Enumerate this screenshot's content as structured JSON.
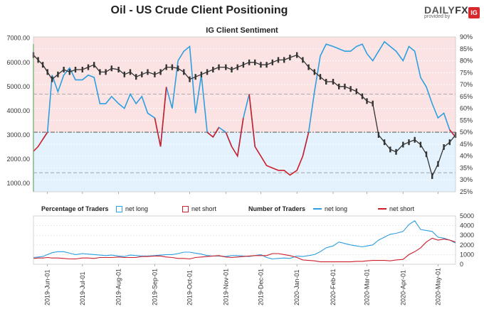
{
  "title": "Oil - US Crude Client Positioning",
  "logo": {
    "brand_a": "DAILY",
    "brand_b": "FX",
    "sub": "provided by",
    "badge": "IG"
  },
  "subtitle": "IG Client Sentiment",
  "legend": {
    "pct_title": "Percentage of Traders",
    "pct_long": "net long",
    "pct_short": "net short",
    "num_title": "Number of Traders",
    "num_long": "net long",
    "num_short": "net short"
  },
  "colors": {
    "net_long": "#2d9fe0",
    "net_short": "#cc1f2b",
    "price": "#333333",
    "bg_long": "#e3f2fc",
    "bg_short": "#fbe3e3"
  },
  "chart_data": [
    {
      "type": "line",
      "title": "IG Client Sentiment",
      "x_labels": [
        "2019-Jun-01",
        "2019-Jul-01",
        "2019-Aug-01",
        "2019-Sep-01",
        "2019-Oct-01",
        "2019-Nov-01",
        "2019-Dec-01",
        "2020-Jan-01",
        "2020-Feb-01",
        "2020-Mar-01",
        "2020-Apr-01",
        "2020-May-01"
      ],
      "left_axis": {
        "ylim": [
          650,
          7050
        ],
        "ticks": [
          "1000.00",
          "2000.00",
          "3000.00",
          "4000.00",
          "5000.00",
          "6000.00",
          "7000.00"
        ]
      },
      "right_axis": {
        "ylim": [
          25,
          90
        ],
        "ticks": [
          "25%",
          "30%",
          "35%",
          "40%",
          "45%",
          "50%",
          "55%",
          "60%",
          "65%",
          "70%",
          "75%",
          "80%",
          "85%",
          "90%"
        ]
      },
      "reference_lines": [
        50,
        66,
        33
      ],
      "x": [
        "2019-05-20",
        "2019-05-24",
        "2019-05-28",
        "2019-06-01",
        "2019-06-05",
        "2019-06-10",
        "2019-06-15",
        "2019-06-20",
        "2019-06-25",
        "2019-07-01",
        "2019-07-06",
        "2019-07-11",
        "2019-07-16",
        "2019-07-21",
        "2019-07-26",
        "2019-08-01",
        "2019-08-06",
        "2019-08-11",
        "2019-08-16",
        "2019-08-21",
        "2019-08-26",
        "2019-09-01",
        "2019-09-06",
        "2019-09-11",
        "2019-09-16",
        "2019-09-21",
        "2019-09-26",
        "2019-10-01",
        "2019-10-06",
        "2019-10-11",
        "2019-10-16",
        "2019-10-21",
        "2019-10-26",
        "2019-11-01",
        "2019-11-06",
        "2019-11-11",
        "2019-11-16",
        "2019-11-21",
        "2019-11-26",
        "2019-12-01",
        "2019-12-06",
        "2019-12-11",
        "2019-12-16",
        "2019-12-21",
        "2019-12-26",
        "2020-01-01",
        "2020-01-06",
        "2020-01-11",
        "2020-01-16",
        "2020-01-21",
        "2020-01-26",
        "2020-02-01",
        "2020-02-06",
        "2020-02-11",
        "2020-02-16",
        "2020-02-21",
        "2020-02-26",
        "2020-03-01",
        "2020-03-06",
        "2020-03-11",
        "2020-03-16",
        "2020-03-21",
        "2020-03-26",
        "2020-04-01",
        "2020-04-06",
        "2020-04-11",
        "2020-04-16",
        "2020-04-21",
        "2020-04-26",
        "2020-05-01",
        "2020-05-06",
        "2020-05-11",
        "2020-05-16"
      ],
      "series": [
        {
          "name": "net long",
          "axis": "right",
          "unit": "%",
          "values": [
            42,
            44,
            47,
            50,
            74,
            67,
            74,
            77,
            72,
            72,
            74,
            73,
            62,
            62,
            65,
            62,
            60,
            66,
            62,
            65,
            58,
            56,
            44,
            69,
            60,
            80,
            84,
            86,
            58,
            74,
            50,
            48,
            52,
            50,
            44,
            40,
            56,
            66,
            44,
            40,
            36,
            35,
            34,
            34,
            32,
            34,
            40,
            50,
            67,
            82,
            87,
            86,
            85,
            84,
            84,
            86,
            87,
            83,
            80,
            84,
            88,
            86,
            84,
            80,
            86,
            84,
            73,
            69,
            62,
            56,
            58,
            51,
            48
          ]
        },
        {
          "name": "price",
          "axis": "left",
          "unit": "USD",
          "values": [
            6300,
            6100,
            5900,
            5600,
            5300,
            5500,
            5700,
            5600,
            5700,
            5700,
            5800,
            5900,
            5600,
            5600,
            5750,
            5700,
            5500,
            5600,
            5400,
            5500,
            5600,
            5500,
            5600,
            5800,
            5800,
            5750,
            5600,
            5300,
            5400,
            5500,
            5600,
            5700,
            5800,
            5800,
            5700,
            5800,
            5900,
            6000,
            6000,
            5900,
            5900,
            6000,
            6100,
            6100,
            6200,
            6300,
            6100,
            5800,
            5600,
            5400,
            5200,
            5200,
            5000,
            5000,
            4900,
            4800,
            4600,
            4400,
            4300,
            3000,
            2700,
            2400,
            2300,
            2600,
            2700,
            2800,
            2600,
            2200,
            1300,
            1800,
            2500,
            2700,
            3000
          ]
        }
      ]
    },
    {
      "type": "line",
      "title": "Number of Traders",
      "ylim": [
        0,
        5000
      ],
      "ticks": [
        "0",
        "1000",
        "2000",
        "3000",
        "4000",
        "5000"
      ],
      "series": [
        {
          "name": "net long",
          "values": [
            700,
            750,
            800,
            1000,
            1200,
            1300,
            1300,
            1150,
            1000,
            1100,
            1050,
            1000,
            950,
            900,
            950,
            850,
            800,
            950,
            900,
            850,
            850,
            900,
            950,
            1000,
            1000,
            1100,
            1250,
            1250,
            1150,
            1050,
            900,
            850,
            850,
            800,
            900,
            900,
            850,
            800,
            900,
            1000,
            700,
            550,
            600,
            650,
            600,
            850,
            800,
            900,
            1000,
            1300,
            1700,
            1900,
            2300,
            2150,
            2000,
            1900,
            1800,
            1900,
            2000,
            2500,
            2800,
            3100,
            3200,
            3400,
            4100,
            4500,
            3600,
            3500,
            3400,
            2800,
            2700,
            2500,
            2200
          ]
        },
        {
          "name": "net short",
          "values": [
            600,
            650,
            650,
            700,
            650,
            650,
            600,
            550,
            550,
            650,
            650,
            600,
            700,
            700,
            700,
            750,
            700,
            700,
            700,
            800,
            800,
            850,
            850,
            750,
            700,
            600,
            600,
            550,
            700,
            750,
            800,
            850,
            900,
            750,
            700,
            750,
            800,
            850,
            900,
            900,
            900,
            1100,
            1100,
            1000,
            900,
            700,
            450,
            400,
            350,
            250,
            250,
            250,
            250,
            250,
            250,
            300,
            300,
            350,
            400,
            400,
            400,
            350,
            450,
            500,
            1000,
            1300,
            1700,
            2300,
            2700,
            2500,
            2600,
            2500,
            2300
          ]
        }
      ]
    }
  ]
}
